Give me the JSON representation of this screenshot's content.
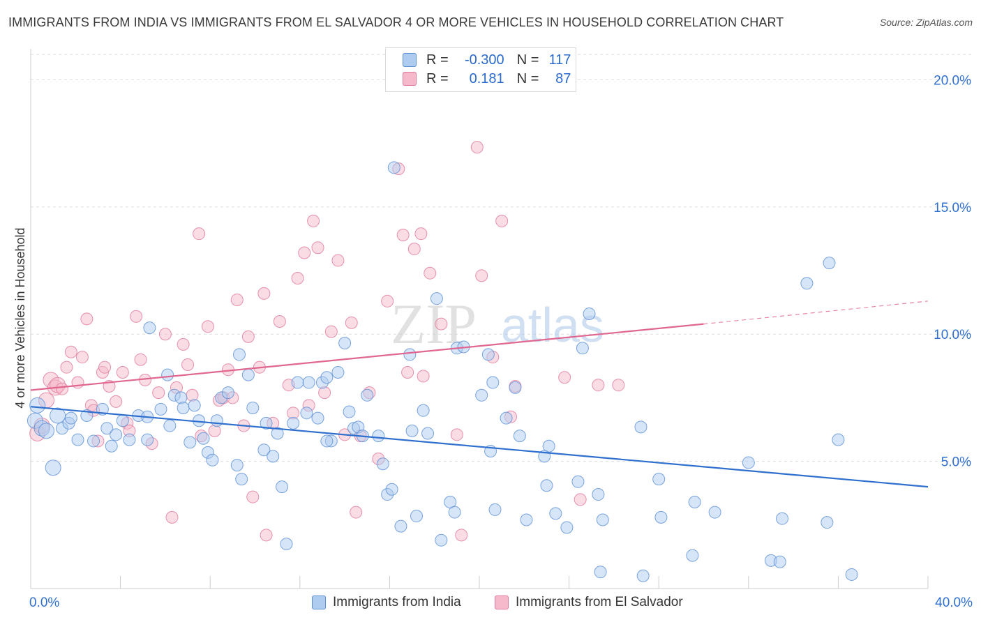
{
  "header": {
    "title": "IMMIGRANTS FROM INDIA VS IMMIGRANTS FROM EL SALVADOR 4 OR MORE VEHICLES IN HOUSEHOLD CORRELATION CHART",
    "source": "Source: ZipAtlas.com"
  },
  "legend": {
    "india": {
      "r_label": "R =",
      "r_value": "-0.300",
      "n_label": "N =",
      "n_value": "117"
    },
    "elsalvador": {
      "r_label": "R =",
      "r_value": "0.181",
      "n_label": "N =",
      "n_value": "87"
    }
  },
  "bottom_legend": {
    "india_label": "Immigrants from India",
    "elsalvador_label": "Immigrants from El Salvador"
  },
  "watermark": {
    "zip": "ZIP",
    "atlas": "atlas"
  },
  "colors": {
    "india_fill": "#aecbf0",
    "india_stroke": "#5b8fd6",
    "india_line": "#2f6fce",
    "es_fill": "#f6b9cb",
    "es_stroke": "#e0789a",
    "es_line": "#e0678f",
    "axis_text": "#2f6fce",
    "grid": "#dddddd"
  },
  "chart_data": {
    "type": "scatter",
    "title": "IMMIGRANTS FROM INDIA VS IMMIGRANTS FROM EL SALVADOR 4 OR MORE VEHICLES IN HOUSEHOLD CORRELATION CHART",
    "xlabel": "",
    "ylabel": "4 or more Vehicles in Household",
    "xlim": [
      0,
      40
    ],
    "ylim": [
      0,
      21
    ],
    "x_tick_labels": [
      "0.0%",
      "40.0%"
    ],
    "y_ticks": [
      5,
      10,
      15,
      20
    ],
    "y_tick_labels": [
      "5.0%",
      "10.0%",
      "15.0%",
      "20.0%"
    ],
    "grid": true,
    "legend_position": "top-center",
    "series": [
      {
        "name": "Immigrants from India",
        "trend": {
          "x0": 0,
          "y0": 7.15,
          "x1": 40,
          "y1": 4.0
        },
        "points": [
          [
            0.2,
            6.6
          ],
          [
            0.3,
            7.2
          ],
          [
            0.5,
            6.3
          ],
          [
            0.7,
            6.2
          ],
          [
            1.0,
            4.75
          ],
          [
            1.2,
            6.8
          ],
          [
            1.4,
            6.3
          ],
          [
            1.7,
            6.5
          ],
          [
            1.8,
            6.7
          ],
          [
            2.1,
            5.85
          ],
          [
            2.5,
            6.8
          ],
          [
            2.8,
            5.8
          ],
          [
            3.2,
            7.05
          ],
          [
            3.4,
            6.3
          ],
          [
            3.6,
            5.6
          ],
          [
            3.8,
            6.05
          ],
          [
            4.1,
            6.6
          ],
          [
            4.4,
            5.85
          ],
          [
            4.8,
            6.8
          ],
          [
            5.2,
            5.85
          ],
          [
            5.2,
            6.75
          ],
          [
            5.3,
            10.25
          ],
          [
            5.8,
            7.05
          ],
          [
            6.1,
            8.4
          ],
          [
            6.2,
            6.4
          ],
          [
            6.4,
            7.6
          ],
          [
            6.7,
            7.5
          ],
          [
            6.8,
            7.1
          ],
          [
            7.1,
            5.75
          ],
          [
            7.3,
            7.2
          ],
          [
            7.5,
            6.6
          ],
          [
            7.7,
            5.9
          ],
          [
            7.9,
            5.35
          ],
          [
            8.1,
            5.05
          ],
          [
            8.3,
            6.6
          ],
          [
            8.5,
            7.5
          ],
          [
            8.8,
            7.7
          ],
          [
            9.2,
            4.85
          ],
          [
            9.3,
            9.2
          ],
          [
            9.4,
            4.3
          ],
          [
            9.7,
            8.4
          ],
          [
            9.9,
            7.1
          ],
          [
            10.4,
            5.45
          ],
          [
            10.5,
            6.5
          ],
          [
            10.8,
            5.2
          ],
          [
            11.0,
            6.1
          ],
          [
            11.2,
            4.0
          ],
          [
            11.4,
            1.75
          ],
          [
            11.7,
            6.5
          ],
          [
            11.9,
            8.1
          ],
          [
            12.3,
            6.9
          ],
          [
            12.4,
            8.1
          ],
          [
            12.8,
            6.7
          ],
          [
            13.0,
            8.1
          ],
          [
            13.2,
            8.3
          ],
          [
            13.4,
            5.8
          ],
          [
            13.7,
            8.5
          ],
          [
            14.0,
            9.65
          ],
          [
            14.2,
            6.95
          ],
          [
            14.4,
            6.3
          ],
          [
            14.6,
            6.35
          ],
          [
            14.8,
            6.0
          ],
          [
            15.0,
            7.6
          ],
          [
            15.5,
            6.0
          ],
          [
            15.7,
            4.9
          ],
          [
            15.9,
            3.7
          ],
          [
            16.1,
            3.9
          ],
          [
            16.2,
            16.55
          ],
          [
            16.5,
            2.45
          ],
          [
            16.9,
            9.2
          ],
          [
            17.0,
            6.2
          ],
          [
            17.2,
            2.85
          ],
          [
            17.5,
            7.0
          ],
          [
            17.7,
            6.1
          ],
          [
            18.1,
            11.4
          ],
          [
            18.3,
            1.9
          ],
          [
            18.7,
            3.4
          ],
          [
            18.9,
            3.0
          ],
          [
            19.0,
            9.45
          ],
          [
            19.3,
            9.5
          ],
          [
            20.1,
            7.6
          ],
          [
            20.4,
            9.2
          ],
          [
            20.5,
            5.4
          ],
          [
            20.6,
            8.1
          ],
          [
            21.2,
            6.7
          ],
          [
            21.6,
            7.9
          ],
          [
            21.8,
            6.0
          ],
          [
            22.1,
            2.7
          ],
          [
            23.0,
            4.05
          ],
          [
            23.1,
            5.6
          ],
          [
            23.4,
            2.95
          ],
          [
            23.9,
            2.4
          ],
          [
            24.4,
            4.2
          ],
          [
            24.6,
            9.45
          ],
          [
            24.9,
            10.8
          ],
          [
            25.3,
            3.7
          ],
          [
            25.4,
            0.65
          ],
          [
            25.5,
            2.7
          ],
          [
            27.2,
            6.35
          ],
          [
            27.3,
            0.5
          ],
          [
            28.0,
            4.3
          ],
          [
            28.1,
            2.8
          ],
          [
            29.5,
            1.3
          ],
          [
            29.6,
            3.4
          ],
          [
            30.5,
            3.0
          ],
          [
            32.0,
            4.95
          ],
          [
            33.0,
            1.1
          ],
          [
            33.5,
            2.75
          ],
          [
            34.6,
            12.0
          ],
          [
            35.5,
            2.6
          ],
          [
            35.6,
            12.8
          ],
          [
            36.0,
            5.85
          ],
          [
            36.6,
            0.55
          ],
          [
            33.4,
            1.05
          ],
          [
            22.9,
            5.2
          ],
          [
            20.7,
            3.1
          ],
          [
            13.2,
            5.8
          ]
        ]
      },
      {
        "name": "Immigrants from El Salvador",
        "trend": {
          "x0": 0,
          "y0": 7.8,
          "x1": 30.0,
          "y1": 10.4,
          "dashed_to_x": 40,
          "dashed_to_y": 11.3
        },
        "points": [
          [
            0.3,
            6.1
          ],
          [
            0.5,
            6.4
          ],
          [
            0.7,
            7.4
          ],
          [
            0.9,
            8.2
          ],
          [
            1.1,
            7.9
          ],
          [
            1.2,
            8.0
          ],
          [
            1.4,
            7.85
          ],
          [
            1.6,
            8.7
          ],
          [
            1.8,
            9.3
          ],
          [
            2.1,
            8.1
          ],
          [
            2.3,
            9.1
          ],
          [
            2.5,
            10.6
          ],
          [
            2.7,
            7.2
          ],
          [
            2.8,
            7.0
          ],
          [
            3.0,
            5.8
          ],
          [
            3.2,
            8.5
          ],
          [
            3.3,
            8.7
          ],
          [
            3.5,
            7.95
          ],
          [
            3.8,
            7.35
          ],
          [
            4.1,
            8.5
          ],
          [
            4.3,
            6.5
          ],
          [
            4.4,
            6.2
          ],
          [
            4.7,
            10.7
          ],
          [
            4.9,
            9.0
          ],
          [
            5.1,
            8.2
          ],
          [
            5.4,
            5.7
          ],
          [
            5.7,
            7.7
          ],
          [
            6.0,
            10.0
          ],
          [
            6.3,
            2.8
          ],
          [
            6.5,
            7.9
          ],
          [
            6.8,
            9.6
          ],
          [
            7.0,
            8.8
          ],
          [
            7.2,
            7.6
          ],
          [
            7.5,
            13.95
          ],
          [
            7.6,
            6.0
          ],
          [
            7.9,
            10.3
          ],
          [
            8.2,
            6.2
          ],
          [
            8.4,
            7.4
          ],
          [
            8.6,
            7.5
          ],
          [
            8.8,
            8.6
          ],
          [
            9.0,
            7.5
          ],
          [
            9.2,
            11.35
          ],
          [
            9.5,
            6.4
          ],
          [
            9.7,
            9.9
          ],
          [
            9.9,
            3.6
          ],
          [
            10.2,
            8.7
          ],
          [
            10.4,
            11.6
          ],
          [
            10.5,
            2.1
          ],
          [
            10.8,
            6.5
          ],
          [
            11.1,
            10.5
          ],
          [
            11.5,
            8.0
          ],
          [
            11.7,
            6.9
          ],
          [
            11.9,
            12.2
          ],
          [
            12.2,
            13.2
          ],
          [
            12.4,
            7.2
          ],
          [
            12.6,
            14.45
          ],
          [
            12.8,
            13.4
          ],
          [
            13.1,
            7.7
          ],
          [
            13.4,
            10.1
          ],
          [
            13.7,
            12.9
          ],
          [
            14.0,
            6.05
          ],
          [
            14.3,
            10.45
          ],
          [
            14.5,
            3.0
          ],
          [
            14.7,
            6.0
          ],
          [
            15.1,
            7.7
          ],
          [
            15.5,
            5.1
          ],
          [
            15.9,
            11.3
          ],
          [
            16.4,
            16.5
          ],
          [
            16.6,
            13.9
          ],
          [
            16.8,
            8.5
          ],
          [
            17.1,
            13.35
          ],
          [
            17.4,
            13.95
          ],
          [
            17.5,
            8.35
          ],
          [
            17.8,
            12.4
          ],
          [
            18.3,
            10.4
          ],
          [
            19.0,
            6.05
          ],
          [
            19.2,
            2.1
          ],
          [
            19.9,
            17.35
          ],
          [
            20.1,
            12.3
          ],
          [
            20.6,
            9.1
          ],
          [
            21.0,
            14.45
          ],
          [
            21.4,
            6.75
          ],
          [
            21.6,
            7.95
          ],
          [
            23.8,
            8.3
          ],
          [
            24.5,
            3.5
          ],
          [
            25.3,
            8.0
          ],
          [
            26.2,
            8.0
          ]
        ]
      }
    ]
  }
}
